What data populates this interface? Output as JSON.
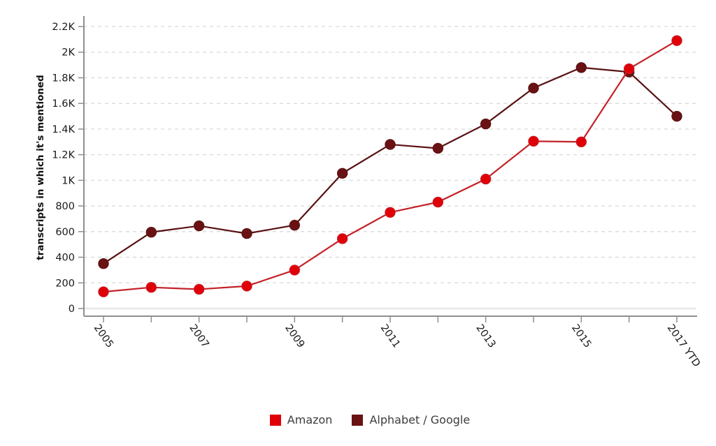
{
  "chart_data": {
    "type": "line",
    "title": "",
    "ylabel": "transcripts in which it's mentioned",
    "xlabel": "",
    "categories": [
      "2005",
      "2006",
      "2007",
      "2008",
      "2009",
      "2010",
      "2011",
      "2012",
      "2013",
      "2014",
      "2015",
      "2016",
      "2017 YTD"
    ],
    "x_labels_visible": [
      "2005",
      "2007",
      "2009",
      "2011",
      "2013",
      "2015",
      "2017 YTD"
    ],
    "series": [
      {
        "name": "Amazon",
        "values": [
          130,
          165,
          150,
          175,
          300,
          545,
          750,
          830,
          1010,
          1305,
          1300,
          1870,
          2090
        ],
        "marker_color": "#e00008",
        "line_color": "#c32129"
      },
      {
        "name": "Alphabet / Google",
        "values": [
          350,
          595,
          645,
          585,
          650,
          1055,
          1280,
          1250,
          1440,
          1720,
          1880,
          1845,
          1500
        ],
        "marker_color": "#6a1213",
        "line_color": "#581112"
      }
    ],
    "ylim": [
      0,
      2200
    ],
    "y_tick_step": 200,
    "y_tick_labels": [
      "0",
      "200",
      "400",
      "600",
      "800",
      "1K",
      "1.2K",
      "1.4K",
      "1.6K",
      "1.8K",
      "2K",
      "2.2K"
    ],
    "grid": "horizontal-dashed",
    "legend_position": "bottom-center",
    "colors": {
      "grid_line": "#d9d9d9",
      "zero_line": "#e7e7e7",
      "axis_line": "#8f8f8f",
      "tick_label": "#1a1a1a",
      "axis_title": "#111111",
      "legend_text": "#3c3c3c"
    }
  }
}
